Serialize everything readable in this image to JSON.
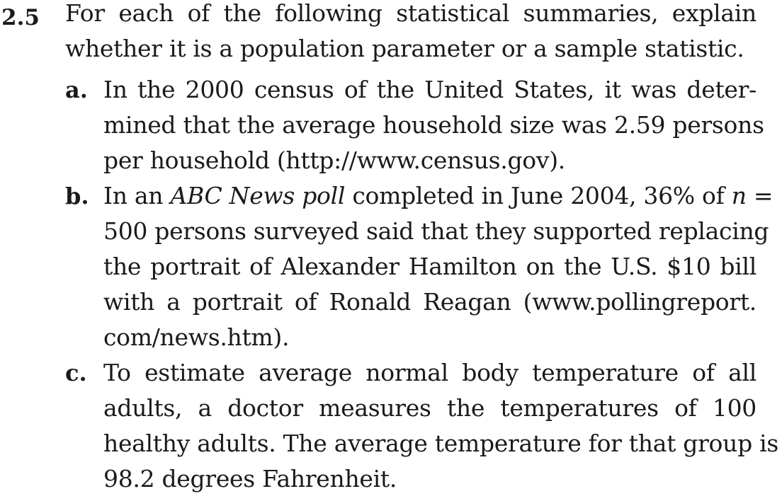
{
  "exercise": {
    "number": "2.5",
    "stem_lines": [
      "For each of the following statistical summaries, explain",
      "whether it is a population parameter or a sample statistic."
    ]
  },
  "parts": [
    {
      "label": "a.",
      "lines": [
        "In the 2000 census of the United States, it was deter-",
        "mined that the average household size was 2.59 persons",
        "per household (http://www.census.gov)."
      ]
    },
    {
      "label": "b.",
      "line1_pre": "In an ",
      "line1_italic": "ABC News poll",
      "line1_post": " completed in June 2004, 36% of ",
      "line1_var": "n",
      "line1_end": " =",
      "lines": [
        "500 persons surveyed said that they supported replacing",
        "the portrait of Alexander Hamilton on the U.S. $10 bill",
        "with a portrait of Ronald Reagan (www.pollingreport.",
        "com/news.htm)."
      ]
    },
    {
      "label": "c.",
      "lines": [
        "To estimate average normal body temperature of all",
        "adults, a doctor measures the temperatures of 100",
        "healthy adults. The average temperature for that group is",
        "98.2 degrees Fahrenheit."
      ]
    }
  ]
}
